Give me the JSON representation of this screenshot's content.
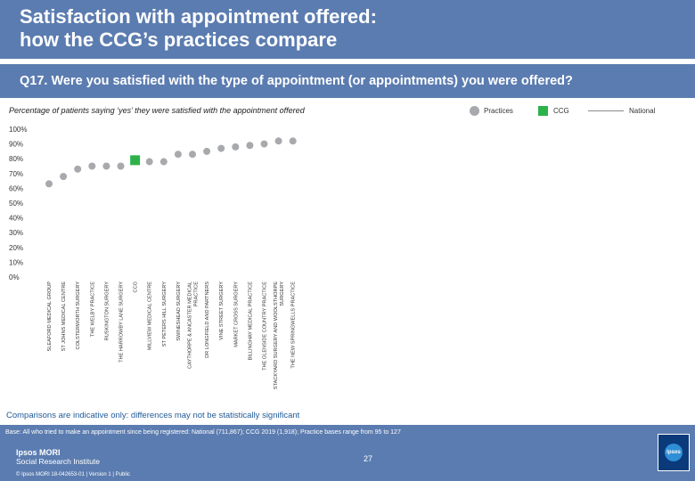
{
  "header": {
    "title_line1": "Satisfaction with appointment offered:",
    "title_line2": "how the CCG’s practices compare"
  },
  "question": "Q17. Were you satisfied with the type of appointment (or appointments) you were offered?",
  "subtitle": "Percentage of patients saying ‘yes’ they were satisfied with the appointment offered",
  "legend": {
    "practices": "Practices",
    "ccg": "CCG",
    "national": "National"
  },
  "colors": {
    "practice_dot": "#a7a9ac",
    "ccg_marker": "#2db24a",
    "header_bg": "#5b7cb0",
    "national_line": "#8a8a8a"
  },
  "chart_data": {
    "type": "scatter",
    "title": "Percentage of patients saying ‘yes’ they were satisfied with the appointment offered",
    "xlabel": "",
    "ylabel": "",
    "ylim": [
      0,
      100
    ],
    "yticks": [
      "0%",
      "10%",
      "20%",
      "30%",
      "40%",
      "50%",
      "60%",
      "70%",
      "80%",
      "90%",
      "100%"
    ],
    "categories": [
      [
        "SLEAFORD MEDICAL GROUP"
      ],
      [
        "ST JOHNS MEDICAL CENTRE"
      ],
      [
        "COLSTERWORTH SURGERY"
      ],
      [
        "THE WELBY PRACTICE"
      ],
      [
        "RUSKINGTON SURGERY"
      ],
      [
        "THE HARROWBY LANE SURGERY"
      ],
      [
        "CCG"
      ],
      [
        "MILLVIEW MEDICAL CENTRE"
      ],
      [
        "ST PETERS HILL SURGERY"
      ],
      [
        "SWINESHEAD SURGERY"
      ],
      [
        "CAYTHORPE & ANCASTER MEDICAL",
        "PRACTICE"
      ],
      [
        "DR LONGFIELD AND PARTNERS"
      ],
      [
        "VINE STREET SURGERY"
      ],
      [
        "MARKET CROSS SURGERY"
      ],
      [
        "BILLINGHAY MEDICAL PRACTICE"
      ],
      [
        "THE GLENSIDE COUNTRY PRACTICE"
      ],
      [
        "STACKYARD SURGERY AND WOOLSTHORPE",
        "SURGERY"
      ],
      [
        "THE NEW SPRINGWELLS PRACTICE"
      ]
    ],
    "values": [
      63,
      68,
      73,
      75,
      75,
      75,
      79,
      78,
      78,
      83,
      83,
      85,
      87,
      88,
      89,
      90,
      92,
      92
    ],
    "is_ccg": [
      false,
      false,
      false,
      false,
      false,
      false,
      true,
      false,
      false,
      false,
      false,
      false,
      false,
      false,
      false,
      false,
      false,
      false
    ],
    "national": null
  },
  "footnote": "Comparisons are indicative only: differences may not be statistically significant",
  "base_text": "Base: All who tried to make an appointment since being registered: National (711,867); CCG 2019 (1,918); Practice bases range from 95 to 127",
  "logo": {
    "line1": "Ipsos MORI",
    "line2": "Social Research Institute"
  },
  "copyright": "© Ipsos MORI      18-042653-01 | Version 1 | Public",
  "page_number": "27",
  "brand_logo_text": "Ipsos"
}
